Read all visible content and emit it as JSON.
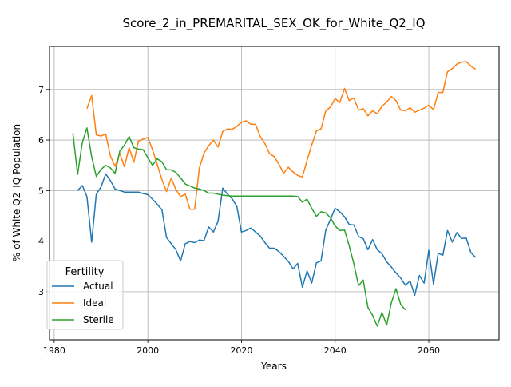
{
  "chart_data": {
    "type": "line",
    "title": "Score_2_in_PREMARITAL_SEX_OK_for_White_Q2_IQ",
    "xlabel": "Years",
    "ylabel": "% of White Q2_IQ Population",
    "xlim": [
      1979,
      2075
    ],
    "ylim": [
      2.05,
      7.85
    ],
    "xticks": [
      1980,
      2000,
      2020,
      2040,
      2060
    ],
    "yticks": [
      3,
      4,
      5,
      6,
      7
    ],
    "grid": true,
    "legend": {
      "title": "Fertility",
      "position": "lower-left"
    },
    "series": [
      {
        "name": "Actual",
        "color": "#1f77b4",
        "x": [
          1985,
          1986,
          1987,
          1988,
          1989,
          1990,
          1991,
          1992,
          1993,
          1994,
          1995,
          1996,
          1997,
          1998,
          1999,
          2000,
          2001,
          2002,
          2003,
          2004,
          2005,
          2006,
          2007,
          2008,
          2009,
          2010,
          2011,
          2012,
          2013,
          2014,
          2015,
          2016,
          2017,
          2018,
          2019,
          2020,
          2021,
          2022,
          2023,
          2024,
          2025,
          2026,
          2027,
          2028,
          2029,
          2030,
          2031,
          2032,
          2033,
          2034,
          2035,
          2036,
          2037,
          2038,
          2039,
          2040,
          2041,
          2042,
          2043,
          2044,
          2045,
          2046,
          2047,
          2048,
          2049,
          2050,
          2051,
          2052,
          2053,
          2054,
          2055,
          2056,
          2057,
          2058,
          2059,
          2060,
          2061,
          2062,
          2063,
          2064,
          2065,
          2066,
          2067,
          2068,
          2069,
          2070
        ],
        "y": [
          5.0,
          5.1,
          4.88,
          3.98,
          4.93,
          5.07,
          5.33,
          5.2,
          5.03,
          5.0,
          4.97,
          4.97,
          4.97,
          4.97,
          4.94,
          4.92,
          4.83,
          4.73,
          4.62,
          4.07,
          3.95,
          3.83,
          3.61,
          3.95,
          3.99,
          3.97,
          4.02,
          4.01,
          4.28,
          4.18,
          4.39,
          5.05,
          4.93,
          4.84,
          4.69,
          4.18,
          4.21,
          4.26,
          4.18,
          4.1,
          3.97,
          3.86,
          3.86,
          3.79,
          3.7,
          3.6,
          3.45,
          3.56,
          3.09,
          3.41,
          3.17,
          3.57,
          3.61,
          4.22,
          4.43,
          4.65,
          4.58,
          4.48,
          4.33,
          4.32,
          4.09,
          4.05,
          3.83,
          4.03,
          3.83,
          3.75,
          3.59,
          3.49,
          3.37,
          3.27,
          3.13,
          3.21,
          2.93,
          3.32,
          3.17,
          3.82,
          3.15,
          3.76,
          3.72,
          4.21,
          3.98,
          4.17,
          4.05,
          4.06,
          3.77,
          3.68
        ]
      },
      {
        "name": "Ideal",
        "color": "#ff7f0e",
        "x": [
          1987,
          1988,
          1989,
          1990,
          1991,
          1992,
          1993,
          1994,
          1995,
          1996,
          1997,
          1998,
          1999,
          2000,
          2001,
          2002,
          2003,
          2004,
          2005,
          2006,
          2007,
          2008,
          2009,
          2010,
          2011,
          2012,
          2013,
          2014,
          2015,
          2016,
          2017,
          2018,
          2019,
          2020,
          2021,
          2022,
          2023,
          2024,
          2025,
          2026,
          2027,
          2028,
          2029,
          2030,
          2031,
          2032,
          2033,
          2034,
          2035,
          2036,
          2037,
          2038,
          2039,
          2040,
          2041,
          2042,
          2043,
          2044,
          2045,
          2046,
          2047,
          2048,
          2049,
          2050,
          2051,
          2052,
          2053,
          2054,
          2055,
          2056,
          2057,
          2058,
          2059,
          2060,
          2061,
          2062,
          2063,
          2064,
          2065,
          2066,
          2067,
          2068,
          2069,
          2070
        ],
        "y": [
          6.62,
          6.88,
          6.1,
          6.08,
          6.12,
          5.69,
          5.48,
          5.74,
          5.47,
          5.85,
          5.56,
          5.98,
          6.02,
          6.05,
          5.81,
          5.52,
          5.22,
          4.98,
          5.25,
          5.02,
          4.88,
          4.93,
          4.63,
          4.63,
          5.45,
          5.74,
          5.89,
          6.0,
          5.86,
          6.17,
          6.22,
          6.21,
          6.27,
          6.35,
          6.38,
          6.31,
          6.31,
          6.07,
          5.93,
          5.73,
          5.67,
          5.52,
          5.34,
          5.46,
          5.37,
          5.3,
          5.27,
          5.6,
          5.9,
          6.18,
          6.22,
          6.58,
          6.65,
          6.82,
          6.74,
          7.02,
          6.78,
          6.83,
          6.59,
          6.62,
          6.48,
          6.58,
          6.52,
          6.67,
          6.75,
          6.86,
          6.78,
          6.59,
          6.58,
          6.64,
          6.55,
          6.59,
          6.63,
          6.69,
          6.6,
          6.94,
          6.94,
          7.35,
          7.41,
          7.5,
          7.54,
          7.55,
          7.46,
          7.4
        ]
      },
      {
        "name": "Sterile",
        "color": "#2ca02c",
        "x": [
          1984,
          1985,
          1986,
          1987,
          1988,
          1989,
          1990,
          1991,
          1992,
          1993,
          1994,
          1995,
          1996,
          1997,
          1998,
          1999,
          2000,
          2001,
          2002,
          2003,
          2004,
          2005,
          2006,
          2007,
          2008,
          2009,
          2010,
          2011,
          2012,
          2013,
          2014,
          2015,
          2016,
          2017,
          2018,
          2019,
          2020,
          2021,
          2022,
          2023,
          2024,
          2025,
          2026,
          2027,
          2028,
          2029,
          2030,
          2031,
          2032,
          2033,
          2034,
          2035,
          2036,
          2037,
          2038,
          2039,
          2040,
          2041,
          2042,
          2043,
          2044,
          2045,
          2046,
          2047,
          2048,
          2049,
          2050,
          2051,
          2052,
          2053,
          2054,
          2055
        ],
        "y": [
          6.14,
          5.32,
          5.95,
          6.24,
          5.67,
          5.28,
          5.42,
          5.5,
          5.45,
          5.34,
          5.78,
          5.9,
          6.07,
          5.85,
          5.82,
          5.81,
          5.65,
          5.5,
          5.63,
          5.57,
          5.41,
          5.41,
          5.36,
          5.25,
          5.13,
          5.09,
          5.05,
          5.03,
          5.0,
          4.95,
          4.95,
          4.93,
          4.91,
          4.9,
          4.89,
          4.89,
          4.89,
          4.89,
          4.89,
          4.89,
          4.89,
          4.89,
          4.89,
          4.89,
          4.89,
          4.89,
          4.89,
          4.89,
          4.88,
          4.77,
          4.83,
          4.65,
          4.49,
          4.58,
          4.56,
          4.46,
          4.3,
          4.21,
          4.22,
          3.91,
          3.55,
          3.12,
          3.23,
          2.69,
          2.53,
          2.32,
          2.59,
          2.34,
          2.78,
          3.06,
          2.75,
          2.64
        ]
      }
    ]
  }
}
